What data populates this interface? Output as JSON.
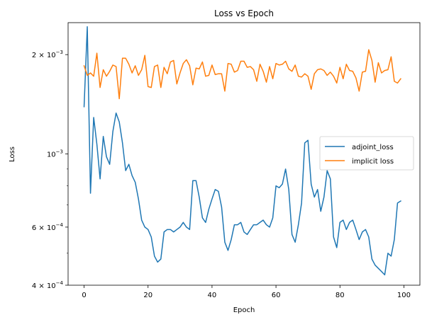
{
  "chart_data": {
    "type": "line",
    "title": "Loss vs Epoch",
    "xlabel": "Epoch",
    "ylabel": "Loss",
    "xlim": [
      -5,
      105
    ],
    "ylim": [
      0.0004,
      0.0025
    ],
    "yscale": "log",
    "grid": false,
    "legend_position": "center-right",
    "x_ticks": [
      0,
      20,
      40,
      60,
      80,
      100
    ],
    "x_tick_labels": [
      "0",
      "20",
      "40",
      "60",
      "80",
      "100"
    ],
    "y_ticks": [
      0.0004,
      0.0006,
      0.001,
      0.002
    ],
    "y_tick_labels": [
      {
        "base": "4 × 10",
        "exp": "−4"
      },
      {
        "base": "6 × 10",
        "exp": "−4"
      },
      {
        "base": "10",
        "exp": "−3"
      },
      {
        "base": "2 × 10",
        "exp": "−3"
      }
    ],
    "y_minor_ticks": [
      0.0005,
      0.0007,
      0.0008,
      0.0009,
      0.0003
    ],
    "x": [
      0,
      1,
      2,
      3,
      4,
      5,
      6,
      7,
      8,
      9,
      10,
      11,
      12,
      13,
      14,
      15,
      16,
      17,
      18,
      19,
      20,
      21,
      22,
      23,
      24,
      25,
      26,
      27,
      28,
      29,
      30,
      31,
      32,
      33,
      34,
      35,
      36,
      37,
      38,
      39,
      40,
      41,
      42,
      43,
      44,
      45,
      46,
      47,
      48,
      49,
      50,
      51,
      52,
      53,
      54,
      55,
      56,
      57,
      58,
      59,
      60,
      61,
      62,
      63,
      64,
      65,
      66,
      67,
      68,
      69,
      70,
      71,
      72,
      73,
      74,
      75,
      76,
      77,
      78,
      79,
      80,
      81,
      82,
      83,
      84,
      85,
      86,
      87,
      88,
      89,
      90,
      91,
      92,
      93,
      94,
      95,
      96,
      97,
      98,
      99
    ],
    "series": [
      {
        "name": "adjoint_loss",
        "color": "#1f77b4",
        "values": [
          0.00139,
          0.00243,
          0.00076,
          0.00129,
          0.00107,
          0.00084,
          0.00113,
          0.00098,
          0.00093,
          0.00117,
          0.00133,
          0.00125,
          0.00108,
          0.00089,
          0.00093,
          0.00086,
          0.00082,
          0.00073,
          0.00063,
          0.0006,
          0.00059,
          0.00056,
          0.00049,
          0.00047,
          0.00048,
          0.00058,
          0.00059,
          0.00059,
          0.00058,
          0.00059,
          0.0006,
          0.00062,
          0.0006,
          0.00059,
          0.00083,
          0.00083,
          0.00074,
          0.00064,
          0.00062,
          0.00068,
          0.00073,
          0.00078,
          0.00077,
          0.00069,
          0.00054,
          0.00051,
          0.00055,
          0.00061,
          0.00061,
          0.00062,
          0.00058,
          0.00057,
          0.00059,
          0.00061,
          0.00061,
          0.00062,
          0.00063,
          0.00061,
          0.0006,
          0.00064,
          0.0008,
          0.00079,
          0.00081,
          0.0009,
          0.00078,
          0.00057,
          0.00054,
          0.00061,
          0.00071,
          0.00108,
          0.0011,
          0.00081,
          0.00074,
          0.00078,
          0.00067,
          0.00074,
          0.00089,
          0.00084,
          0.00056,
          0.00052,
          0.00062,
          0.00063,
          0.00059,
          0.00062,
          0.00063,
          0.00059,
          0.00055,
          0.00058,
          0.00059,
          0.00056,
          0.00048,
          0.00046,
          0.00045,
          0.00044,
          0.00043,
          0.0005,
          0.00049,
          0.00055,
          0.00071,
          0.00072
        ]
      },
      {
        "name": "implicit loss",
        "color": "#ff7f0e",
        "values": [
          0.00185,
          0.00173,
          0.00176,
          0.00172,
          0.00202,
          0.00159,
          0.0018,
          0.00172,
          0.00178,
          0.00186,
          0.00184,
          0.00147,
          0.00195,
          0.00195,
          0.00187,
          0.00176,
          0.00185,
          0.00173,
          0.0018,
          0.00199,
          0.0016,
          0.00159,
          0.00184,
          0.00186,
          0.00159,
          0.00183,
          0.00175,
          0.0019,
          0.00192,
          0.00163,
          0.00176,
          0.00188,
          0.00193,
          0.00185,
          0.00162,
          0.00182,
          0.00181,
          0.0019,
          0.00172,
          0.00173,
          0.00186,
          0.00174,
          0.00175,
          0.00175,
          0.00155,
          0.00188,
          0.00187,
          0.00177,
          0.00179,
          0.00191,
          0.00191,
          0.00183,
          0.00184,
          0.0018,
          0.00166,
          0.00187,
          0.00178,
          0.00165,
          0.00184,
          0.00169,
          0.00188,
          0.00186,
          0.00187,
          0.00191,
          0.00181,
          0.00178,
          0.00186,
          0.00172,
          0.00171,
          0.00175,
          0.00172,
          0.00157,
          0.00175,
          0.0018,
          0.00181,
          0.00179,
          0.00173,
          0.00177,
          0.00172,
          0.00164,
          0.00183,
          0.00169,
          0.00187,
          0.00179,
          0.00178,
          0.0017,
          0.00155,
          0.00177,
          0.00178,
          0.00207,
          0.00192,
          0.00165,
          0.00189,
          0.00176,
          0.00179,
          0.0018,
          0.00197,
          0.00166,
          0.00164,
          0.00169
        ]
      }
    ]
  }
}
